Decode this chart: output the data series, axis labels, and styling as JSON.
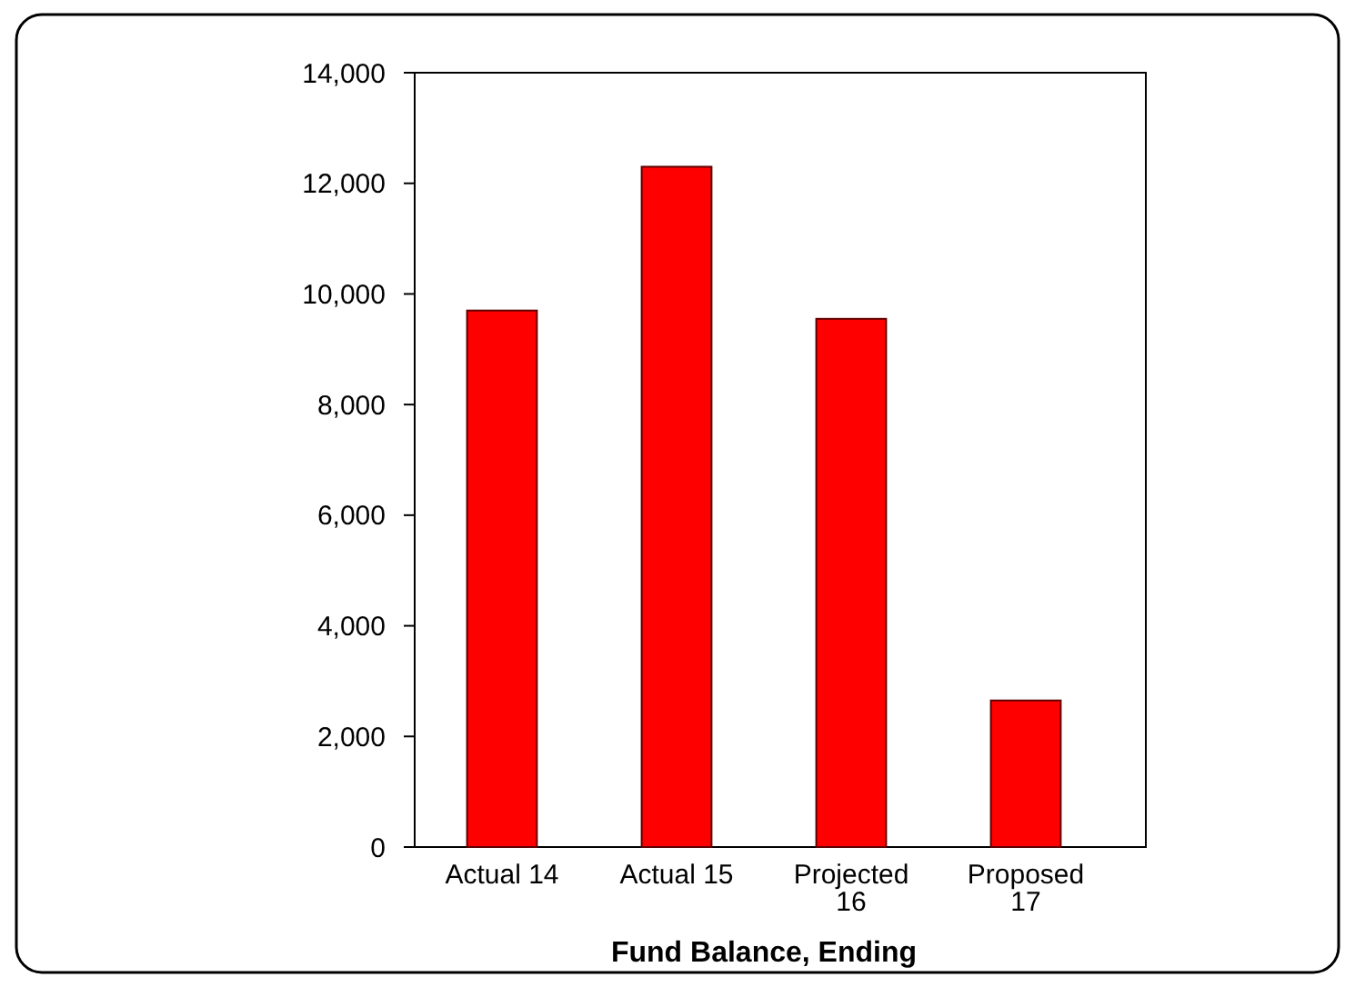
{
  "chart_data": {
    "type": "bar",
    "xlabel": "Fund Balance, Ending",
    "categories": [
      "Actual 14",
      "Actual 15",
      "Projected 16",
      "Proposed 17"
    ],
    "values": [
      9700,
      12300,
      9550,
      2650
    ],
    "color": "#ff0000",
    "ylim": [
      0,
      14000
    ],
    "yticks": [
      {
        "value": 0,
        "label": "0"
      },
      {
        "value": 2000,
        "label": "2,000"
      },
      {
        "value": 4000,
        "label": "4,000"
      },
      {
        "value": 6000,
        "label": "6,000"
      },
      {
        "value": 8000,
        "label": "8,000"
      },
      {
        "value": 10000,
        "label": "10,000"
      },
      {
        "value": 12000,
        "label": "12,000"
      },
      {
        "value": 14000,
        "label": "14,000"
      }
    ],
    "grid": false
  }
}
